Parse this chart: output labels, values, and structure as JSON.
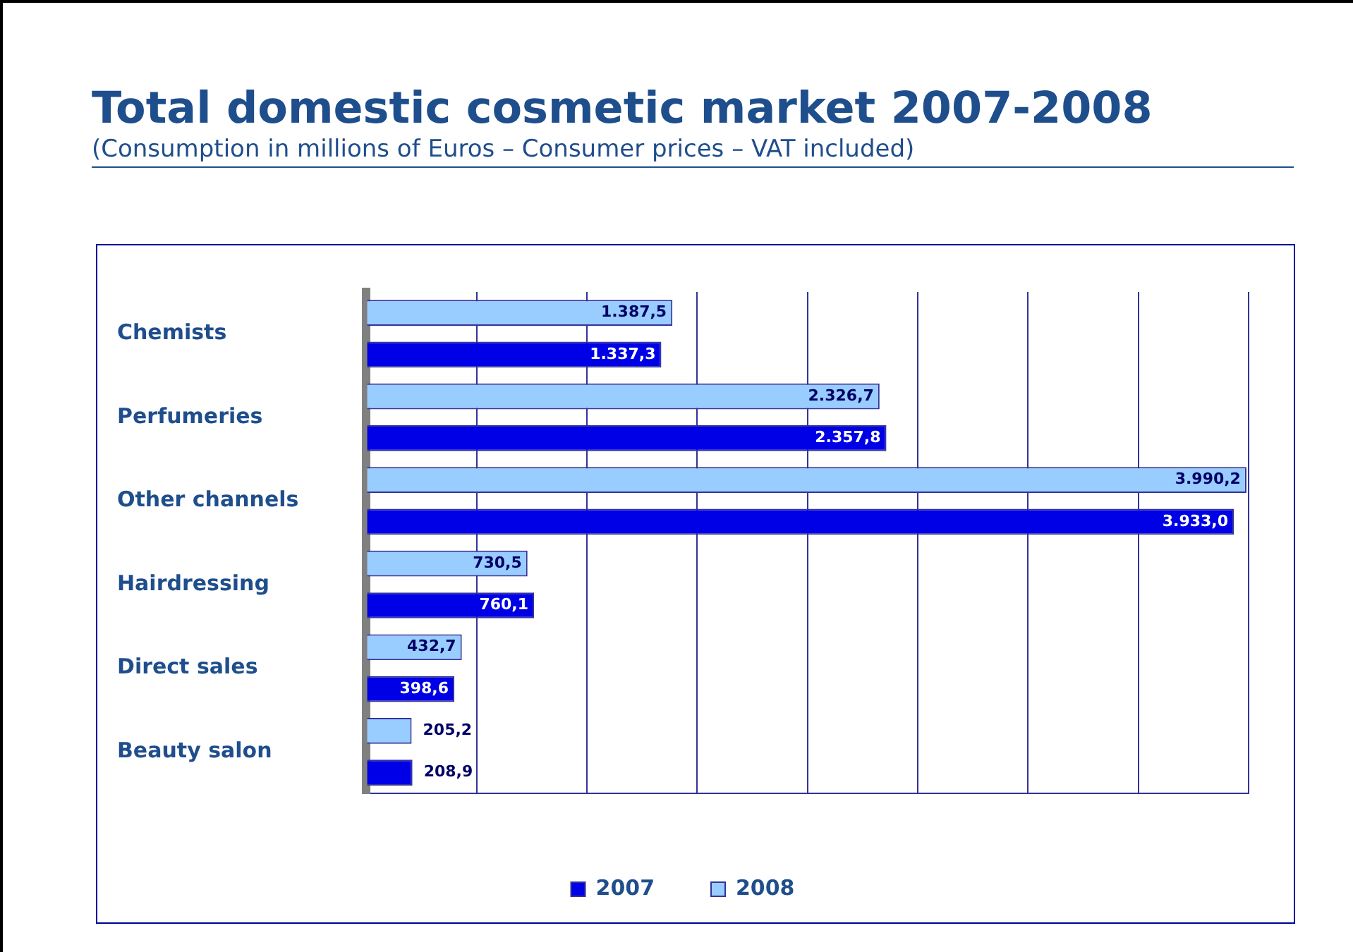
{
  "chart_data": {
    "type": "bar",
    "orientation": "horizontal",
    "title": "Total domestic cosmetic market 2007-2008",
    "subtitle": "(Consumption in millions of Euros – Consumer prices – VAT included)",
    "categories": [
      "Chemists",
      "Perfumeries",
      "Other channels",
      "Hairdressing",
      "Direct sales",
      "Beauty salon"
    ],
    "series": [
      {
        "name": "2008",
        "color": "#99ccff",
        "values": [
          1387.5,
          2326.7,
          3990.2,
          730.5,
          432.7,
          205.2
        ],
        "value_labels": [
          "1.387,5",
          "2.326,7",
          "3.990,2",
          "730,5",
          "432,7",
          "205,2"
        ]
      },
      {
        "name": "2007",
        "color": "#0000e6",
        "values": [
          1337.3,
          2357.8,
          3933.0,
          760.1,
          398.6,
          208.9
        ],
        "value_labels": [
          "1.337,3",
          "2.357,8",
          "3.933,0",
          "760,1",
          "398,6",
          "208,9"
        ]
      }
    ],
    "xlim": [
      0,
      4000
    ],
    "xticks": [
      {
        "value": 0,
        "label": null
      },
      {
        "value": 500,
        "label": null
      },
      {
        "value": 1000,
        "label": null
      },
      {
        "value": 1500,
        "label": null
      },
      {
        "value": 2000,
        "label": null
      },
      {
        "value": 2500,
        "label": null
      },
      {
        "value": 3000,
        "label": null
      },
      {
        "value": 3500,
        "label": null
      },
      {
        "value": 4000,
        "label": null
      }
    ],
    "grid": "x",
    "legend": "bottom"
  }
}
